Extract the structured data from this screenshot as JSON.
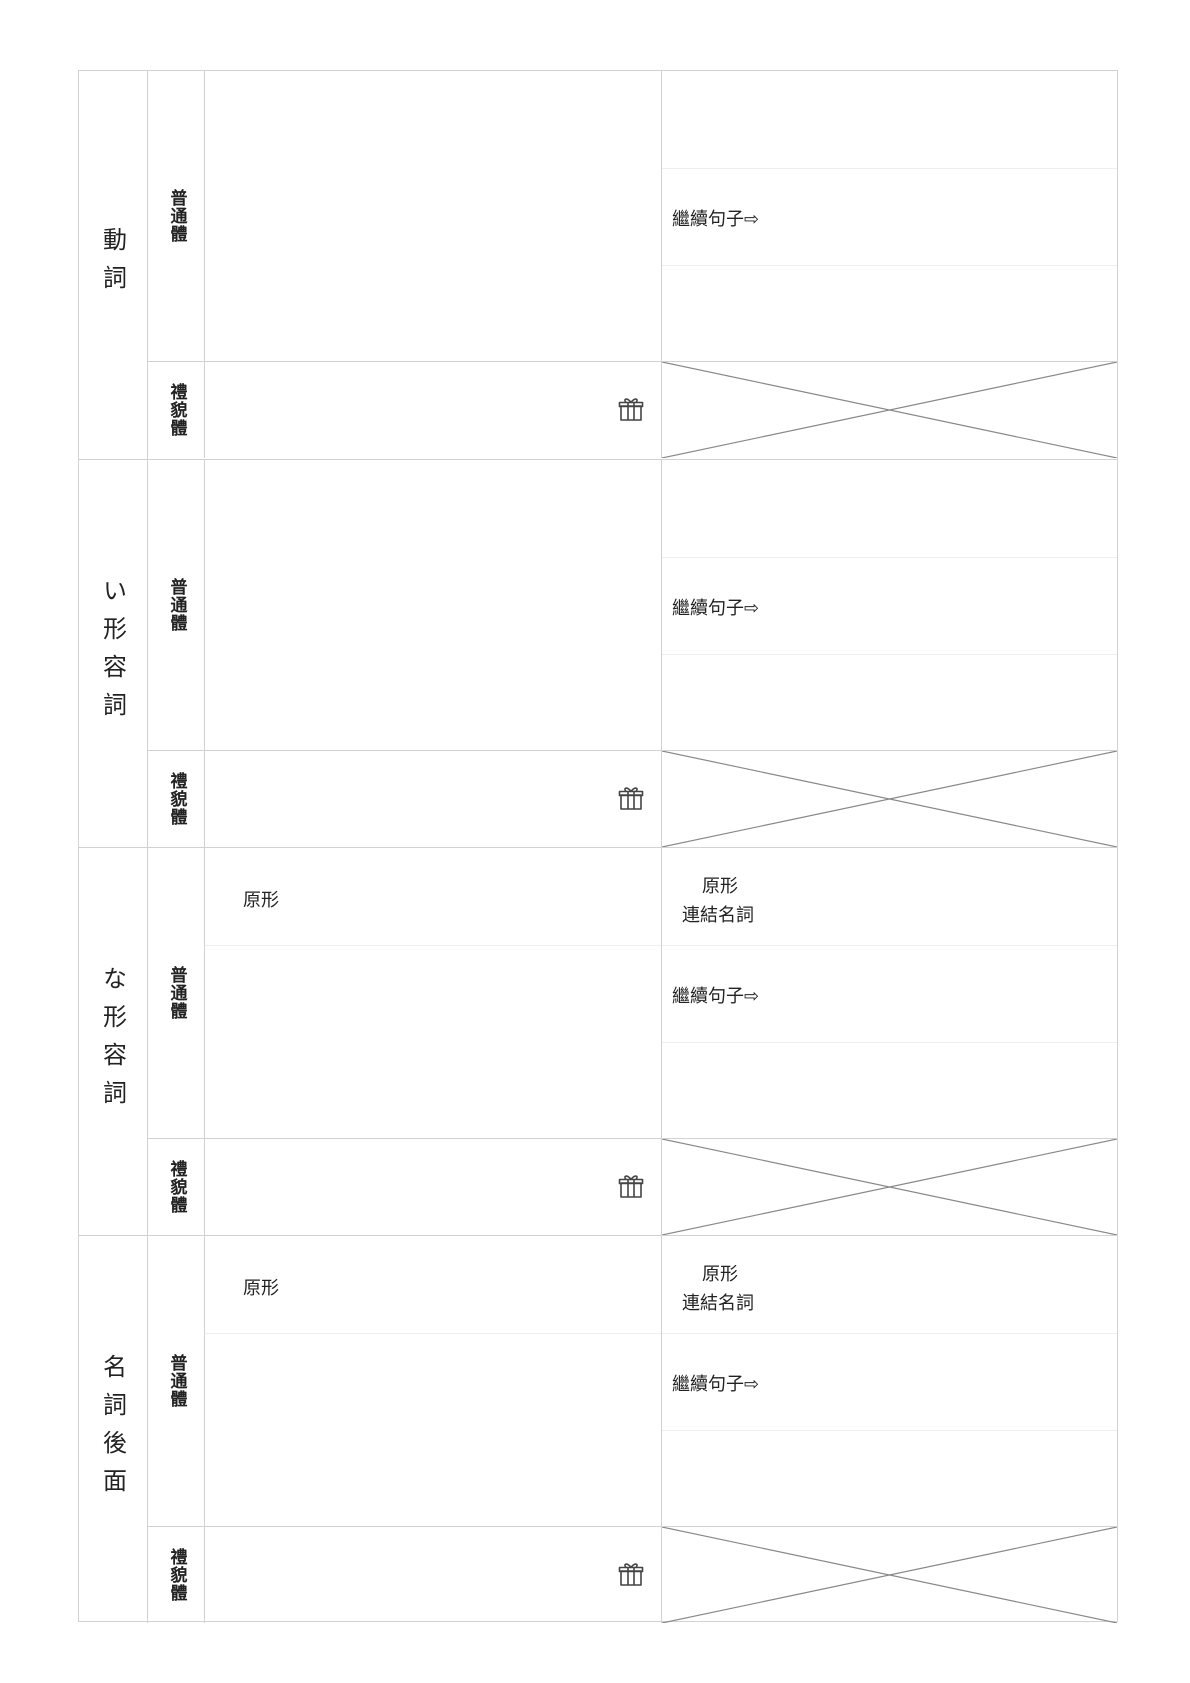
{
  "sections": [
    {
      "category": "動詞",
      "plain_label": "普通體",
      "polite_label": "禮貌體",
      "mid_text": "",
      "right_top_line1": "",
      "right_top_line2": "",
      "continuation": "繼續句子⇨"
    },
    {
      "category": "い形容詞",
      "plain_label": "普通體",
      "polite_label": "禮貌體",
      "mid_text": "",
      "right_top_line1": "",
      "right_top_line2": "",
      "continuation": "繼續句子⇨"
    },
    {
      "category": "な形容詞",
      "plain_label": "普通體",
      "polite_label": "禮貌體",
      "mid_text": "原形",
      "right_top_line1": "原形",
      "right_top_line2": "連結名詞",
      "continuation": "繼續句子⇨"
    },
    {
      "category": "名詞後面",
      "plain_label": "普通體",
      "polite_label": "禮貌體",
      "mid_text": "原形",
      "right_top_line1": "原形",
      "right_top_line2": "連結名詞",
      "continuation": "繼續句子⇨"
    }
  ],
  "icons": {
    "polite_cell_icon": "gift-icon"
  },
  "colors": {
    "border": "#d2d2d2",
    "cross_line": "#888888",
    "text": "#222222"
  }
}
